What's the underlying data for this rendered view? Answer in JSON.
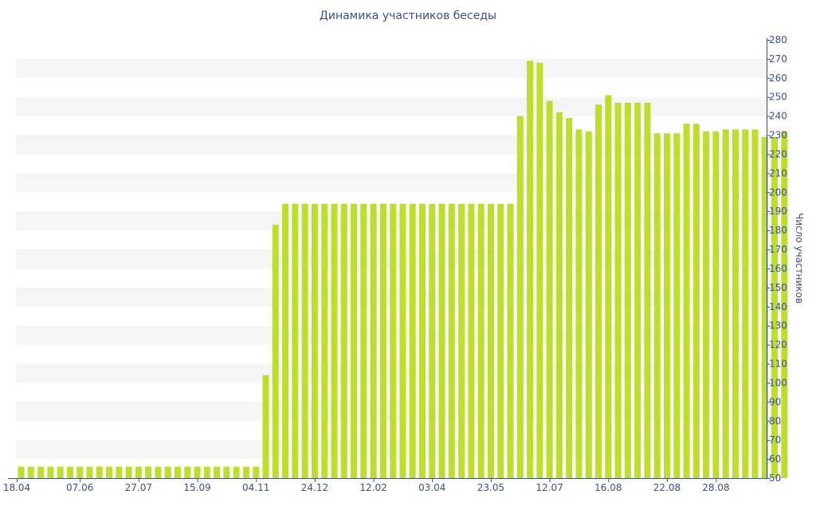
{
  "chart_data": {
    "type": "bar",
    "title": "Динамика участников беседы",
    "xlabel": "",
    "ylabel": "Число участников",
    "ylim": [
      50,
      280
    ],
    "ytick_step": 10,
    "grid": "alternating horizontal bands",
    "y_axis_position": "right",
    "bar_color": "#bddf2c",
    "band_color": "#f5f5f5",
    "text_color": "#3b4f8f",
    "x_tick_labels": [
      "18.04",
      "07.06",
      "27.07",
      "15.09",
      "04.11",
      "24.12",
      "12.02",
      "03.04",
      "23.05",
      "12.07",
      "16.08",
      "22.08",
      "28.08"
    ],
    "x_tick_bar_index": [
      0,
      6,
      12,
      18,
      24,
      30,
      36,
      42,
      48,
      54,
      60,
      66,
      71
    ],
    "values": [
      56,
      56,
      56,
      56,
      56,
      56,
      56,
      56,
      56,
      56,
      56,
      56,
      56,
      56,
      56,
      56,
      56,
      56,
      56,
      56,
      56,
      56,
      56,
      56,
      56,
      104,
      183,
      194,
      194,
      194,
      194,
      194,
      194,
      194,
      194,
      194,
      194,
      194,
      194,
      194,
      194,
      194,
      194,
      194,
      194,
      194,
      194,
      194,
      194,
      194,
      194,
      240,
      269,
      268,
      248,
      242,
      239,
      233,
      232,
      246,
      251,
      247,
      247,
      247,
      247,
      231,
      231,
      231,
      236,
      236,
      232,
      232,
      233,
      233,
      233,
      233,
      229,
      229,
      232
    ]
  }
}
